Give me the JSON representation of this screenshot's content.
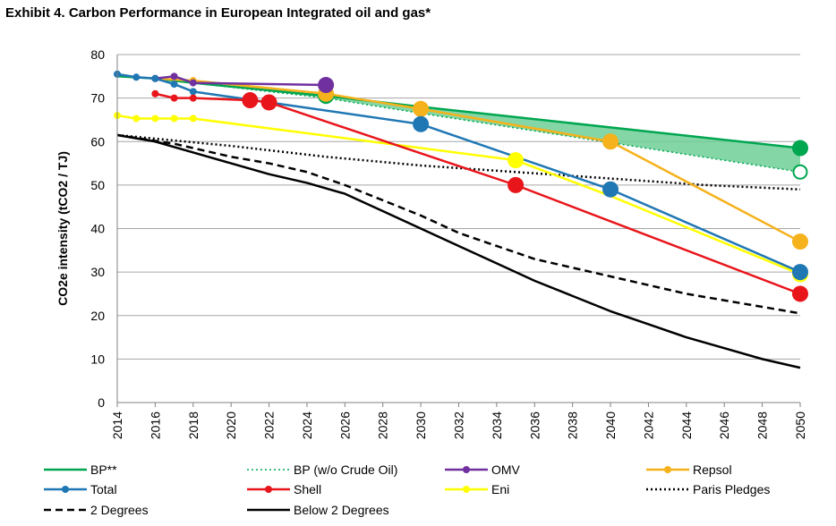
{
  "title": "Exhibit 4. Carbon Performance in European Integrated oil and gas*",
  "chart_data": {
    "type": "line",
    "title": "Exhibit 4. Carbon Performance in European Integrated oil and gas*",
    "xlabel": "",
    "ylabel": "CO2e intensity (tCO2 / TJ)",
    "xlim": [
      2014,
      2050
    ],
    "ylim": [
      0,
      80
    ],
    "x_ticks": [
      "2014",
      "2016",
      "2018",
      "2020",
      "2022",
      "2024",
      "2026",
      "2028",
      "2030",
      "2032",
      "2034",
      "2036",
      "2038",
      "2040",
      "2042",
      "2044",
      "2046",
      "2048",
      "2050"
    ],
    "y_ticks": [
      "0",
      "10",
      "20",
      "30",
      "40",
      "50",
      "60",
      "70",
      "80"
    ],
    "grid": "horizontal",
    "legend_position": "bottom",
    "shaded_band": {
      "between": [
        "BP**",
        "BP (w/o Crude Oil)"
      ],
      "color": "#6fcf97"
    },
    "series": [
      {
        "name": "BP**",
        "color": "#00a650",
        "style": "solid",
        "points": [
          [
            2014,
            75
          ],
          [
            2016,
            74.5
          ],
          [
            2018,
            73.5
          ],
          [
            2025,
            70.5
          ],
          [
            2030,
            68
          ],
          [
            2050,
            58.5
          ]
        ],
        "large_markers": [
          [
            2025,
            70.5
          ],
          [
            2050,
            58.5
          ]
        ],
        "marker_fill": "filled"
      },
      {
        "name": "BP (w/o Crude Oil)",
        "color": "#00a650",
        "style": "dotted",
        "points": [
          [
            2014,
            75
          ],
          [
            2016,
            74.5
          ],
          [
            2018,
            73.5
          ],
          [
            2025,
            70
          ],
          [
            2030,
            66.5
          ],
          [
            2050,
            53
          ]
        ],
        "large_markers": [
          [
            2050,
            53
          ]
        ],
        "marker_fill": "hollow"
      },
      {
        "name": "OMV",
        "color": "#7030a0",
        "style": "solid",
        "points": [
          [
            2016,
            74.5
          ],
          [
            2017,
            75
          ],
          [
            2018,
            73.5
          ],
          [
            2025,
            73
          ]
        ],
        "small_markers": [
          [
            2016,
            74.5
          ],
          [
            2017,
            75
          ],
          [
            2018,
            73.5
          ]
        ],
        "large_markers": [
          [
            2025,
            73
          ]
        ]
      },
      {
        "name": "Repsol",
        "color": "#f5b21c",
        "style": "solid",
        "points": [
          [
            2016,
            74.5
          ],
          [
            2018,
            74
          ],
          [
            2025,
            71
          ],
          [
            2030,
            67.5
          ],
          [
            2040,
            60
          ],
          [
            2050,
            37
          ]
        ],
        "small_markers": [
          [
            2016,
            74.5
          ],
          [
            2018,
            74
          ]
        ],
        "large_markers": [
          [
            2025,
            71
          ],
          [
            2030,
            67.5
          ],
          [
            2040,
            60
          ],
          [
            2050,
            37
          ]
        ]
      },
      {
        "name": "Total",
        "color": "#1f77b4",
        "style": "solid",
        "points": [
          [
            2014,
            75.5
          ],
          [
            2015,
            74.8
          ],
          [
            2016,
            74.5
          ],
          [
            2017,
            73.2
          ],
          [
            2018,
            71.5
          ],
          [
            2030,
            64
          ],
          [
            2040,
            49
          ],
          [
            2050,
            30
          ]
        ],
        "small_markers": [
          [
            2014,
            75.5
          ],
          [
            2015,
            74.8
          ],
          [
            2016,
            74.5
          ],
          [
            2017,
            73.2
          ],
          [
            2018,
            71.5
          ]
        ],
        "large_markers": [
          [
            2030,
            64
          ],
          [
            2040,
            49
          ],
          [
            2050,
            30
          ]
        ]
      },
      {
        "name": "Shell",
        "color": "#e8151b",
        "style": "solid",
        "points": [
          [
            2016,
            71
          ],
          [
            2017,
            70
          ],
          [
            2018,
            70
          ],
          [
            2021,
            69.5
          ],
          [
            2022,
            69
          ],
          [
            2035,
            50
          ],
          [
            2050,
            25
          ]
        ],
        "small_markers": [
          [
            2016,
            71
          ],
          [
            2017,
            70
          ],
          [
            2018,
            70
          ]
        ],
        "large_markers": [
          [
            2021,
            69.5
          ],
          [
            2022,
            69
          ],
          [
            2035,
            50
          ],
          [
            2050,
            25
          ]
        ]
      },
      {
        "name": "Eni",
        "color": "#ffff00",
        "style": "solid",
        "points": [
          [
            2014,
            66
          ],
          [
            2015,
            65.3
          ],
          [
            2016,
            65.3
          ],
          [
            2017,
            65.3
          ],
          [
            2018,
            65.3
          ],
          [
            2035,
            55.7
          ],
          [
            2040,
            47.5
          ],
          [
            2050,
            29.5
          ]
        ],
        "small_markers": [
          [
            2014,
            66
          ],
          [
            2015,
            65.3
          ],
          [
            2016,
            65.3
          ],
          [
            2017,
            65.3
          ],
          [
            2018,
            65.3
          ]
        ],
        "large_markers": [
          [
            2035,
            55.7
          ],
          [
            2050,
            29.5
          ]
        ]
      },
      {
        "name": "Paris Pledges",
        "color": "#000000",
        "style": "dotted",
        "points": [
          [
            2014,
            61.5
          ],
          [
            2020,
            59
          ],
          [
            2025,
            56.5
          ],
          [
            2030,
            54.5
          ],
          [
            2035,
            53
          ],
          [
            2040,
            51.5
          ],
          [
            2045,
            50
          ],
          [
            2050,
            49
          ]
        ]
      },
      {
        "name": "2 Degrees",
        "color": "#000000",
        "style": "dashed",
        "points": [
          [
            2014,
            61.5
          ],
          [
            2017,
            59.5
          ],
          [
            2020,
            56.5
          ],
          [
            2022,
            55
          ],
          [
            2024,
            53
          ],
          [
            2026,
            50
          ],
          [
            2028,
            46.5
          ],
          [
            2030,
            43
          ],
          [
            2032,
            39
          ],
          [
            2034,
            36
          ],
          [
            2036,
            33
          ],
          [
            2038,
            31
          ],
          [
            2040,
            29
          ],
          [
            2042,
            27
          ],
          [
            2044,
            25
          ],
          [
            2046,
            23.5
          ],
          [
            2048,
            22
          ],
          [
            2050,
            20.5
          ]
        ]
      },
      {
        "name": "Below 2 Degrees",
        "color": "#000000",
        "style": "solid",
        "points": [
          [
            2014,
            61.5
          ],
          [
            2016,
            60
          ],
          [
            2018,
            57.5
          ],
          [
            2020,
            55
          ],
          [
            2022,
            52.5
          ],
          [
            2024,
            50.5
          ],
          [
            2026,
            48
          ],
          [
            2028,
            44
          ],
          [
            2030,
            40
          ],
          [
            2032,
            36
          ],
          [
            2034,
            32
          ],
          [
            2036,
            28
          ],
          [
            2038,
            24.5
          ],
          [
            2040,
            21
          ],
          [
            2042,
            18
          ],
          [
            2044,
            15
          ],
          [
            2046,
            12.5
          ],
          [
            2048,
            10
          ],
          [
            2050,
            8
          ]
        ]
      }
    ]
  }
}
